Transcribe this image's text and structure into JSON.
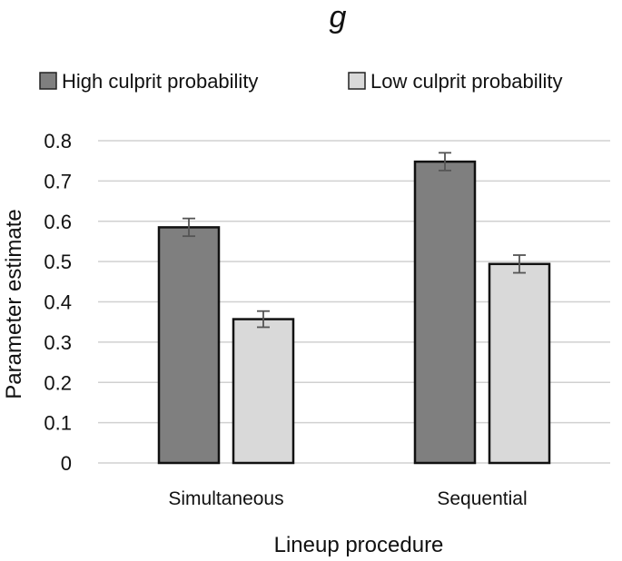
{
  "chart_data": {
    "type": "bar",
    "title": "g",
    "xlabel": "Lineup procedure",
    "ylabel": "Parameter estimate",
    "categories": [
      "Simultaneous",
      "Sequential"
    ],
    "ylim": [
      0,
      0.8
    ],
    "yticks": [
      0,
      0.1,
      0.2,
      0.3,
      0.4,
      0.5,
      0.6,
      0.7,
      0.8
    ],
    "ytick_labels": [
      "0",
      "0.1",
      "0.2",
      "0.3",
      "0.4",
      "0.5",
      "0.6",
      "0.7",
      "0.8"
    ],
    "grid": true,
    "legend_position": "top",
    "series": [
      {
        "name": "High culprit probability",
        "values": [
          0.585,
          0.748
        ],
        "errors": [
          0.022,
          0.022
        ],
        "color": "#7f7f7f"
      },
      {
        "name": "Low culprit probability",
        "values": [
          0.357,
          0.494
        ],
        "errors": [
          0.02,
          0.022
        ],
        "color": "#d9d9d9"
      }
    ]
  }
}
